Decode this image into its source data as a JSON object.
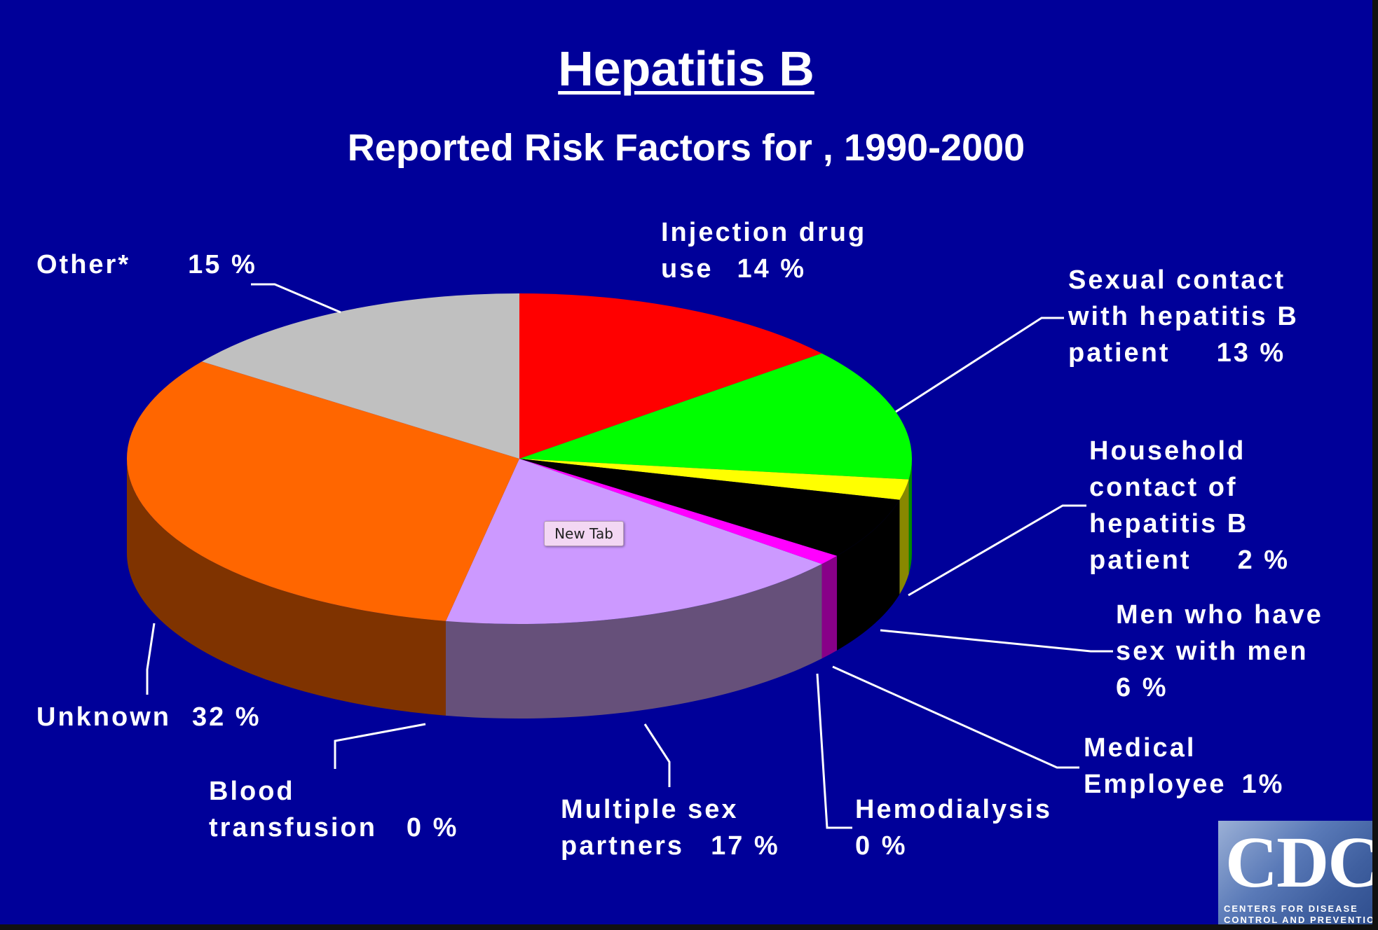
{
  "title": "Hepatitis B",
  "subtitle": "Reported Risk Factors for , 1990-2000",
  "chart_data": {
    "type": "pie",
    "title": "Hepatitis B",
    "subtitle": "Reported Risk Factors for , 1990-2000",
    "unit": "%",
    "slices": [
      {
        "label_lines": [
          "Injection drug",
          "use"
        ],
        "value": 14,
        "value_text": "14 %",
        "color": "#ff0000",
        "side_color": "#990000"
      },
      {
        "label_lines": [
          "Sexual contact",
          "with hepatitis B",
          "patient"
        ],
        "value": 13,
        "value_text": "13 %",
        "color": "#00ff00",
        "side_color": "#008800"
      },
      {
        "label_lines": [
          "Household",
          "contact of",
          "hepatitis B",
          "patient"
        ],
        "value": 2,
        "value_text": "2 %",
        "color": "#ffff00",
        "side_color": "#888800"
      },
      {
        "label_lines": [
          "Men who have",
          "sex with men"
        ],
        "value": 6,
        "value_text": "6 %",
        "color": "#000000",
        "side_color": "#000000"
      },
      {
        "label_lines": [
          "Medical",
          "Employee"
        ],
        "value": 1,
        "value_text": "1%",
        "color": "#ff00ff",
        "side_color": "#880088"
      },
      {
        "label_lines": [
          "Hemodialysis"
        ],
        "value": 0,
        "value_text": "0 %",
        "color": "#00ffff",
        "side_color": "#008888"
      },
      {
        "label_lines": [
          "Multiple sex",
          "partners"
        ],
        "value": 17,
        "value_text": "17 %",
        "color": "#cc99ff",
        "side_color": "#66507a"
      },
      {
        "label_lines": [
          "Blood",
          "transfusion"
        ],
        "value": 0,
        "value_text": "0 %",
        "color": "#3366ff",
        "side_color": "#1a3380"
      },
      {
        "label_lines": [
          "Unknown"
        ],
        "value": 32,
        "value_text": "32 %",
        "color": "#ff6600",
        "side_color": "#7f3300"
      },
      {
        "label_lines": [
          "Other*"
        ],
        "value": 15,
        "value_text": "15 %",
        "color": "#c0c0c0",
        "side_color": "#808080"
      }
    ],
    "legend": "none"
  },
  "tooltip": "New Tab",
  "logo": {
    "letters": "CDC",
    "line1": "CENTERS FOR DISEASE",
    "line2": "CONTROL AND PREVENTION"
  }
}
